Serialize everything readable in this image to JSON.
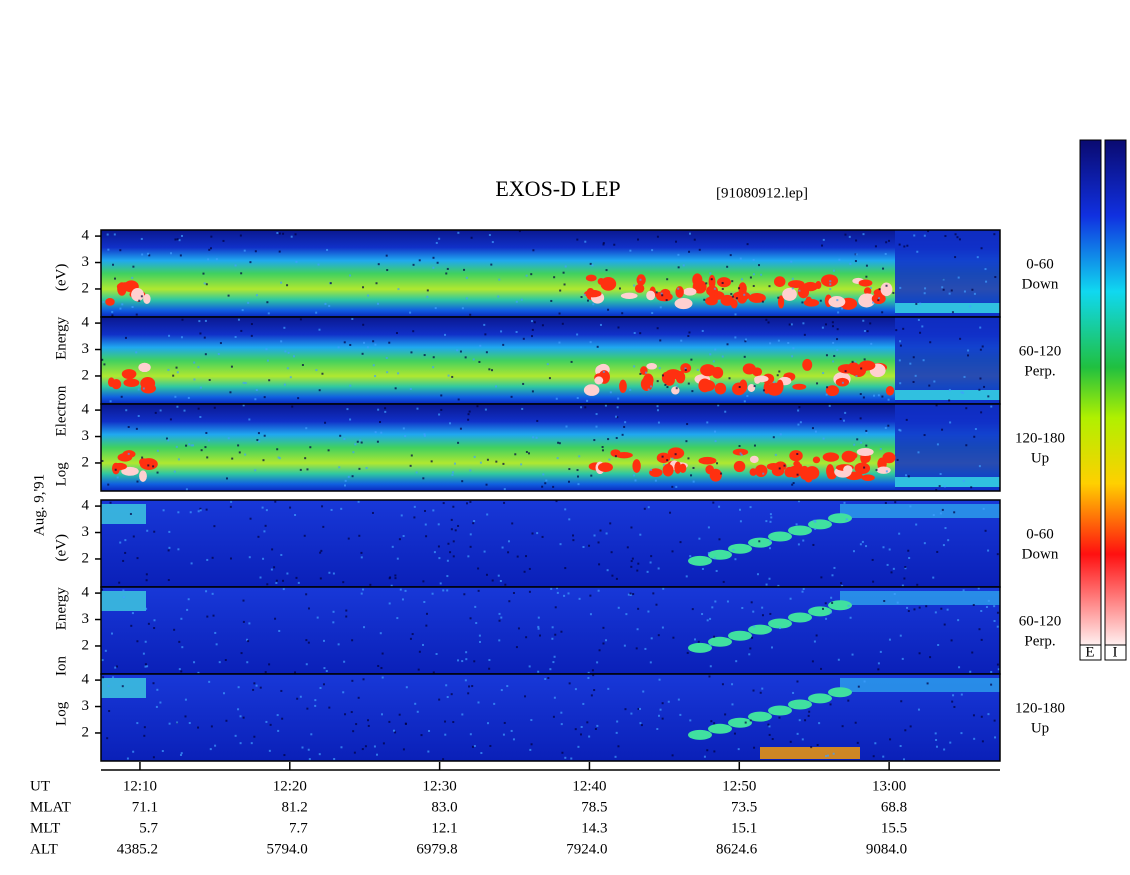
{
  "header": {
    "title": "EXOS-D LEP",
    "file": "[91080912.lep]"
  },
  "y_axis_labels": {
    "electron": "Log Electron Energy (eV)",
    "date": "Aug. 9,'91",
    "ion": "Log Ion Energy (eV)"
  },
  "panels": [
    {
      "label": [
        "0-60",
        "Down"
      ],
      "ylim": [
        0.94,
        4.23
      ],
      "yticks": [
        2,
        3,
        4
      ]
    },
    {
      "label": [
        "60-120",
        "Perp."
      ],
      "ylim": [
        0.94,
        4.23
      ],
      "yticks": [
        2,
        3,
        4
      ]
    },
    {
      "label": [
        "120-180",
        "Up"
      ],
      "ylim": [
        0.94,
        4.23
      ],
      "yticks": [
        2,
        3,
        4
      ]
    },
    {
      "label": [
        "0-60",
        "Down"
      ],
      "ylim": [
        0.94,
        4.23
      ],
      "yticks": [
        2,
        3,
        4
      ]
    },
    {
      "label": [
        "60-120",
        "Perp."
      ],
      "ylim": [
        0.94,
        4.23
      ],
      "yticks": [
        2,
        3,
        4
      ]
    },
    {
      "label": [
        "120-180",
        "Up"
      ],
      "ylim": [
        0.94,
        4.23
      ],
      "yticks": [
        2,
        3,
        4
      ]
    }
  ],
  "time_axis": {
    "title": "UT",
    "xlim": [
      727.4,
      787.4
    ],
    "xticks": [
      {
        "value": 730,
        "label": "12:10"
      },
      {
        "value": 740,
        "label": "12:20"
      },
      {
        "value": 750,
        "label": "12:30"
      },
      {
        "value": 760,
        "label": "12:40"
      },
      {
        "value": 770,
        "label": "12:50"
      },
      {
        "value": 780,
        "label": "13:00"
      }
    ]
  },
  "ephemeris": [
    {
      "label": "MLAT",
      "values": [
        "71.1",
        "81.2",
        "83.0",
        "78.5",
        "73.5",
        "68.8"
      ]
    },
    {
      "label": "MLT",
      "values": [
        "5.7",
        "7.7",
        "12.1",
        "14.3",
        "15.1",
        "15.5"
      ]
    },
    {
      "label": "ALT",
      "values": [
        "4385.2",
        "5794.0",
        "6979.8",
        "7924.0",
        "8624.6",
        "9084.0"
      ]
    }
  ],
  "colorbar": {
    "labels": [
      "E",
      "I"
    ]
  }
}
